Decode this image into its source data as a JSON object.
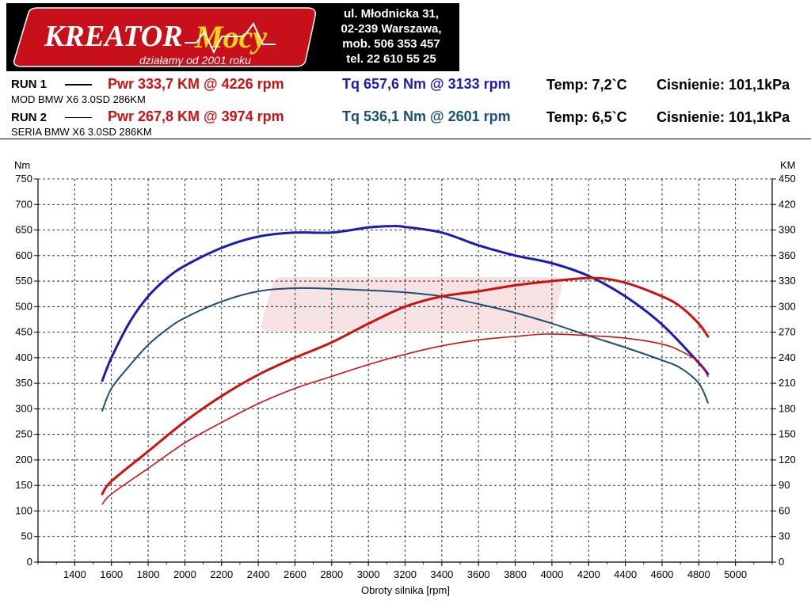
{
  "logo": {
    "brand": "KreatorMocy",
    "tagline": "działamy od 2001 roku",
    "address_lines": [
      "ul. Młodnicka 31,",
      "02-239  Warszawa,",
      "mob.  506 353 457",
      "tel.  22 610 55 25"
    ]
  },
  "runs": [
    {
      "label": "RUN 1",
      "car": "MOD BMW X6 3.0SD 286KM",
      "pwr": "Pwr  333,7 KM @ 4226 rpm",
      "tq": "Tq 657,6 Nm @ 3133 rpm",
      "temp": "Temp: 7,2`C",
      "pressure": "Cisnienie: 101,1kPa"
    },
    {
      "label": "RUN 2",
      "car": "SERIA BMW X6 3.0SD 286KM",
      "pwr": "Pwr  267,8 KM @ 3974 rpm",
      "tq": "Tq 536,1 Nm @ 2601 rpm",
      "temp": "Temp: 6,5`C",
      "pressure": "Cisnienie: 101,1kPa"
    }
  ],
  "colors": {
    "power": "#cc1111",
    "torque_run1": "#1c1cb0",
    "torque_run2": "#1a4f78",
    "grid": "#000000",
    "logo_bg": "#000000"
  },
  "chart_data": {
    "type": "line",
    "xlabel": "Obroty silnika [rpm]",
    "ylabel_left": "Nm",
    "ylabel_right": "KM",
    "xlim": [
      1200,
      5200
    ],
    "ylim_left": [
      0,
      750
    ],
    "ylim_right": [
      0,
      450
    ],
    "x_ticks": [
      1400,
      1600,
      1800,
      2000,
      2200,
      2400,
      2600,
      2800,
      3000,
      3200,
      3400,
      3600,
      3800,
      4000,
      4200,
      4400,
      4600,
      4800,
      5000
    ],
    "y_ticks_left": [
      0,
      50,
      100,
      150,
      200,
      250,
      300,
      350,
      400,
      450,
      500,
      550,
      600,
      650,
      700,
      750
    ],
    "y_ticks_right": [
      0,
      30,
      60,
      90,
      120,
      150,
      180,
      210,
      240,
      270,
      300,
      330,
      360,
      390,
      420,
      450
    ],
    "grid": true,
    "series": [
      {
        "key": "tq_run1",
        "axis": "left",
        "color": "#1c1cb0",
        "width": 3,
        "x": [
          1550,
          1600,
          1700,
          1800,
          1900,
          2000,
          2200,
          2400,
          2600,
          2800,
          3000,
          3133,
          3200,
          3400,
          3600,
          3800,
          4000,
          4200,
          4400,
          4600,
          4800,
          4850
        ],
        "y": [
          355,
          400,
          470,
          520,
          555,
          580,
          615,
          637,
          645,
          645,
          655,
          657.6,
          656,
          645,
          620,
          600,
          585,
          560,
          520,
          465,
          390,
          368
        ]
      },
      {
        "key": "tq_run2",
        "axis": "left",
        "color": "#1a4f78",
        "width": 2,
        "x": [
          1550,
          1600,
          1700,
          1800,
          1900,
          2000,
          2200,
          2400,
          2601,
          2800,
          3000,
          3200,
          3400,
          3600,
          3800,
          4000,
          4200,
          4400,
          4600,
          4700,
          4800,
          4850
        ],
        "y": [
          296,
          340,
          385,
          425,
          455,
          478,
          510,
          530,
          536.1,
          535,
          532,
          528,
          520,
          505,
          488,
          467,
          443,
          420,
          395,
          380,
          350,
          312
        ]
      },
      {
        "key": "pwr_run1",
        "axis": "right",
        "color": "#cc1111",
        "width": 3,
        "x": [
          1550,
          1600,
          1800,
          2000,
          2200,
          2400,
          2600,
          2800,
          3000,
          3200,
          3400,
          3600,
          3800,
          4000,
          4226,
          4400,
          4600,
          4700,
          4800,
          4850
        ],
        "y": [
          80,
          95,
          130,
          165,
          195,
          220,
          240,
          258,
          280,
          300,
          312,
          318,
          325,
          330,
          333.7,
          328,
          312,
          300,
          280,
          265
        ]
      },
      {
        "key": "pwr_run2",
        "axis": "right",
        "color": "#cc1111",
        "width": 1.6,
        "x": [
          1550,
          1600,
          1800,
          2000,
          2200,
          2400,
          2600,
          2800,
          3000,
          3200,
          3400,
          3600,
          3800,
          3974,
          4200,
          4400,
          4600,
          4700,
          4800,
          4850
        ],
        "y": [
          68,
          80,
          110,
          140,
          164,
          186,
          204,
          218,
          232,
          244,
          254,
          261,
          265,
          267.8,
          266,
          263,
          256,
          248,
          235,
          218
        ]
      }
    ]
  }
}
